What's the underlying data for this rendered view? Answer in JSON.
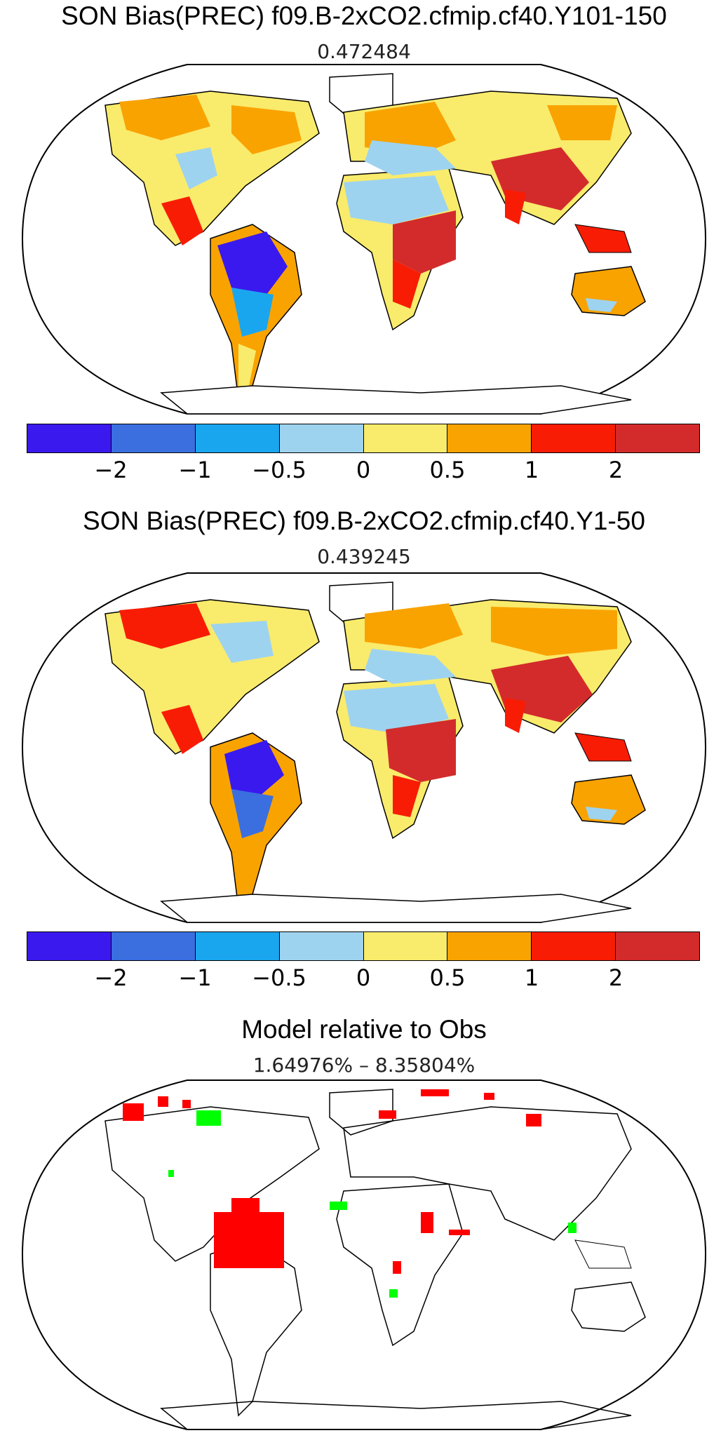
{
  "panels": [
    {
      "title": "SON Bias(PREC) f09.B-2xCO2.cfmip.cf40.Y101-150",
      "stat": "0.472484"
    },
    {
      "title": "SON Bias(PREC) f09.B-2xCO2.cfmip.cf40.Y1-50",
      "stat": "0.439245"
    },
    {
      "title": "Model relative to Obs",
      "stat": "1.64976% – 8.35804%"
    }
  ],
  "colorbar": {
    "colors": [
      "#3a19ee",
      "#3b6fe0",
      "#1aa6ee",
      "#9ed3ef",
      "#f9eb6c",
      "#f9a300",
      "#f81c05",
      "#d32b2b"
    ],
    "ticks": [
      "−2",
      "−1",
      "−0.5",
      "0",
      "0.5",
      "1",
      "2"
    ]
  },
  "significance_colors": {
    "model_wetter": "#ff0000",
    "model_drier": "#00ff00"
  }
}
